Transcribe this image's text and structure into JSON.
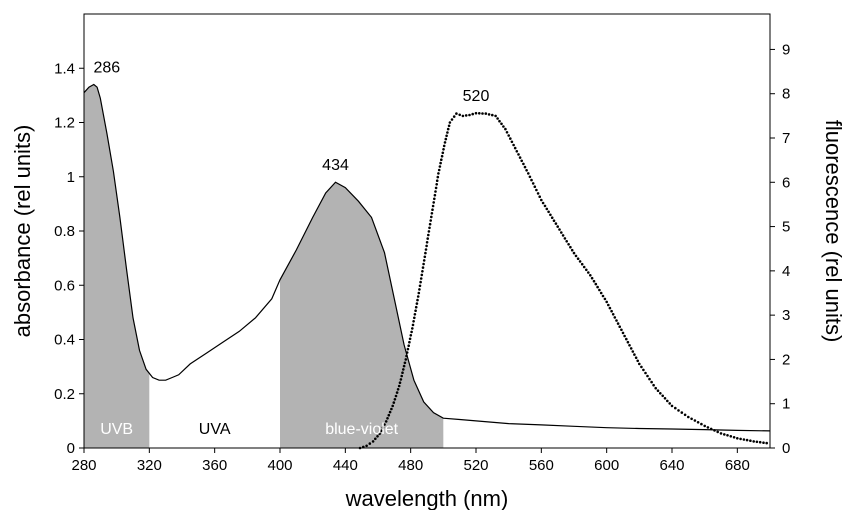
{
  "chart_data": {
    "type": "line",
    "xlabel": "wavelength (nm)",
    "ylabel_left": "absorbance (rel units)",
    "ylabel_right": "fluorescence (rel units)",
    "xlim": [
      280,
      700
    ],
    "ylim_left": [
      0,
      1.6
    ],
    "ylim_right": [
      0,
      9.8
    ],
    "x_ticks": [
      280,
      320,
      360,
      400,
      440,
      480,
      520,
      560,
      600,
      640,
      680
    ],
    "y_left_ticks": [
      "0",
      "0.2",
      "0.4",
      "0.6",
      "0.8",
      "1",
      "1.2",
      "1.4"
    ],
    "y_right_ticks": [
      "0",
      "1",
      "2",
      "3",
      "4",
      "5",
      "6",
      "7",
      "8",
      "9"
    ],
    "grid": false,
    "colors": {
      "fill": "#b3b3b3",
      "line": "#000000",
      "band_label_light": "#ffffff"
    },
    "series": [
      {
        "axis": "left",
        "style": "line",
        "points": [
          [
            280,
            1.31
          ],
          [
            283,
            1.33
          ],
          [
            286,
            1.34
          ],
          [
            288,
            1.33
          ],
          [
            290,
            1.29
          ],
          [
            294,
            1.16
          ],
          [
            298,
            1.02
          ],
          [
            302,
            0.85
          ],
          [
            306,
            0.66
          ],
          [
            310,
            0.48
          ],
          [
            314,
            0.36
          ],
          [
            318,
            0.29
          ],
          [
            322,
            0.26
          ],
          [
            326,
            0.25
          ],
          [
            330,
            0.25
          ],
          [
            334,
            0.26
          ],
          [
            338,
            0.27
          ],
          [
            345,
            0.31
          ],
          [
            355,
            0.35
          ],
          [
            365,
            0.39
          ],
          [
            375,
            0.43
          ],
          [
            385,
            0.48
          ],
          [
            395,
            0.55
          ],
          [
            400,
            0.62
          ],
          [
            410,
            0.73
          ],
          [
            420,
            0.85
          ],
          [
            428,
            0.94
          ],
          [
            434,
            0.98
          ],
          [
            440,
            0.96
          ],
          [
            448,
            0.91
          ],
          [
            456,
            0.85
          ],
          [
            464,
            0.72
          ],
          [
            470,
            0.55
          ],
          [
            476,
            0.38
          ],
          [
            482,
            0.25
          ],
          [
            488,
            0.17
          ],
          [
            494,
            0.13
          ],
          [
            500,
            0.11
          ],
          [
            510,
            0.105
          ],
          [
            520,
            0.1
          ],
          [
            540,
            0.09
          ],
          [
            560,
            0.085
          ],
          [
            580,
            0.08
          ],
          [
            600,
            0.075
          ],
          [
            620,
            0.072
          ],
          [
            640,
            0.07
          ],
          [
            660,
            0.068
          ],
          [
            680,
            0.065
          ],
          [
            700,
            0.063
          ]
        ]
      },
      {
        "axis": "right",
        "style": "dots",
        "points": [
          [
            449,
            0
          ],
          [
            453,
            0.05
          ],
          [
            457,
            0.15
          ],
          [
            461,
            0.32
          ],
          [
            465,
            0.6
          ],
          [
            469,
            0.95
          ],
          [
            473,
            1.4
          ],
          [
            477,
            2.0
          ],
          [
            481,
            2.7
          ],
          [
            485,
            3.5
          ],
          [
            489,
            4.4
          ],
          [
            493,
            5.3
          ],
          [
            497,
            6.2
          ],
          [
            501,
            6.9
          ],
          [
            504,
            7.35
          ],
          [
            508,
            7.55
          ],
          [
            512,
            7.5
          ],
          [
            516,
            7.52
          ],
          [
            520,
            7.56
          ],
          [
            526,
            7.55
          ],
          [
            532,
            7.5
          ],
          [
            538,
            7.2
          ],
          [
            545,
            6.7
          ],
          [
            552,
            6.2
          ],
          [
            560,
            5.6
          ],
          [
            570,
            5.0
          ],
          [
            580,
            4.4
          ],
          [
            590,
            3.9
          ],
          [
            600,
            3.3
          ],
          [
            610,
            2.6
          ],
          [
            620,
            1.9
          ],
          [
            630,
            1.35
          ],
          [
            640,
            0.95
          ],
          [
            650,
            0.7
          ],
          [
            660,
            0.5
          ],
          [
            670,
            0.33
          ],
          [
            680,
            0.22
          ],
          [
            690,
            0.15
          ],
          [
            700,
            0.1
          ]
        ]
      }
    ],
    "peaks": [
      {
        "label": "286",
        "x": 286,
        "y": 1.34,
        "axis": "left"
      },
      {
        "label": "434",
        "x": 434,
        "y": 0.98,
        "axis": "left"
      },
      {
        "label": "520",
        "x": 520,
        "y": 7.56,
        "axis": "right"
      }
    ],
    "bands": [
      {
        "label": "UVB",
        "from": 280,
        "to": 320,
        "filled": true
      },
      {
        "label": "UVA",
        "from": 320,
        "to": 400,
        "filled": false
      },
      {
        "label": "blue-violet",
        "from": 400,
        "to": 500,
        "filled": true
      }
    ]
  }
}
